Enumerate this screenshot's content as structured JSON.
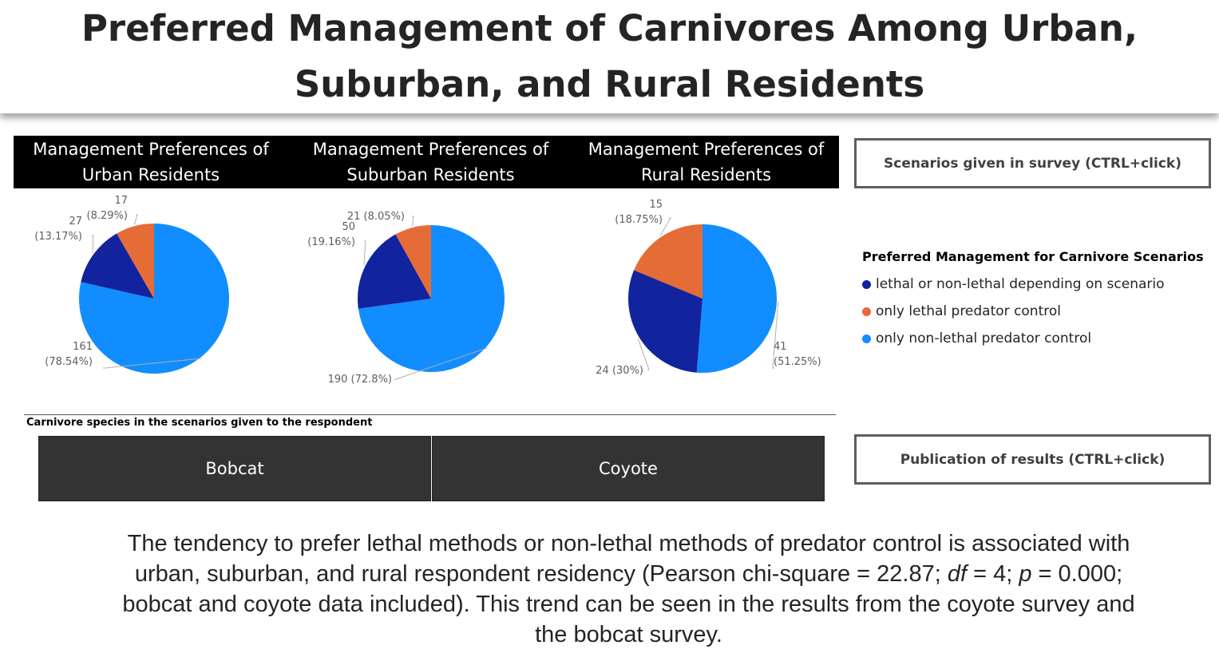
{
  "title": "Preferred Management of Carnivores Among Urban, Suburban, and Rural Residents",
  "chart_titles": [
    "Management Preferences of Urban Residents",
    "Management Preferences of Suburban Residents",
    "Management Preferences of Rural Residents"
  ],
  "buttons": {
    "scenarios": "Scenarios given in survey (CTRL+click)",
    "publication": "Publication of results (CTRL+click)"
  },
  "legend": {
    "title": "Preferred Management for Carnivore Scenarios",
    "items": [
      {
        "label": "lethal or non-lethal depending on scenario",
        "color": "#12239e"
      },
      {
        "label": "only lethal predator control",
        "color": "#e66c37"
      },
      {
        "label": "only non-lethal predator control",
        "color": "#118dff"
      }
    ]
  },
  "slicer": {
    "caption": "Carnivore species in the scenarios given to the respondent",
    "options": [
      "Bobcat",
      "Coyote"
    ]
  },
  "summary": {
    "p1": "The tendency to prefer lethal methods or non-lethal methods of predator control is associated with urban, suburban, and rural respondent residency (Pearson chi-square = 22.87; ",
    "df": "df",
    "p2": " = 4; ",
    "p": "p",
    "p3": " = 0.000; bobcat and coyote data included). This trend can be seen in the results from the coyote survey and the bobcat survey."
  },
  "chart_data": [
    {
      "type": "pie",
      "title": "Management Preferences of Urban Residents",
      "categories": [
        "only non-lethal predator control",
        "lethal or non-lethal depending on scenario",
        "only lethal predator control"
      ],
      "values": [
        161,
        27,
        17
      ],
      "percents": [
        "78.54%",
        "13.17%",
        "8.29%"
      ],
      "data_labels": [
        [
          "161",
          "(78.54%)"
        ],
        [
          "27",
          "(13.17%)"
        ],
        [
          "17",
          "(8.29%)"
        ]
      ],
      "colors": [
        "#118dff",
        "#12239e",
        "#e66c37"
      ]
    },
    {
      "type": "pie",
      "title": "Management Preferences of Suburban Residents",
      "categories": [
        "only non-lethal predator control",
        "lethal or non-lethal depending on scenario",
        "only lethal predator control"
      ],
      "values": [
        190,
        50,
        21
      ],
      "percents": [
        "72.8%",
        "19.16%",
        "8.05%"
      ],
      "data_labels": [
        [
          "190 (72.8%)"
        ],
        [
          "50",
          "(19.16%)"
        ],
        [
          "21 (8.05%)"
        ]
      ],
      "colors": [
        "#118dff",
        "#12239e",
        "#e66c37"
      ]
    },
    {
      "type": "pie",
      "title": "Management Preferences of Rural Residents",
      "categories": [
        "only non-lethal predator control",
        "lethal or non-lethal depending on scenario",
        "only lethal predator control"
      ],
      "values": [
        41,
        24,
        15
      ],
      "percents": [
        "51.25%",
        "30%",
        "18.75%"
      ],
      "data_labels": [
        [
          "41",
          "(51.25%)"
        ],
        [
          "24 (30%)"
        ],
        [
          "15",
          "(18.75%)"
        ]
      ],
      "colors": [
        "#118dff",
        "#12239e",
        "#e66c37"
      ]
    }
  ]
}
